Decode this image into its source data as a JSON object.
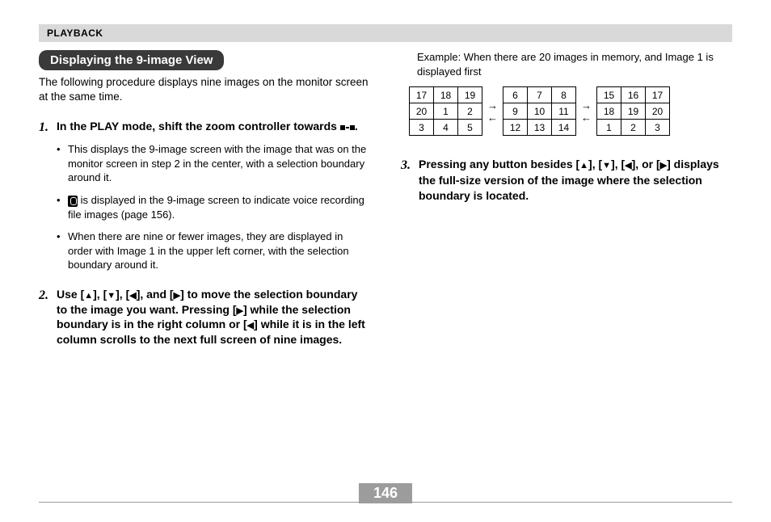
{
  "header": {
    "section": "PLAYBACK"
  },
  "section_title": "Displaying the 9-image View",
  "intro": "The following procedure displays nine images on the monitor screen at the same time.",
  "step1": {
    "text_before": "In the PLAY mode, shift the zoom controller towards ",
    "text_after": ".",
    "bullets": [
      "This displays the 9-image screen with the image that was on the monitor screen in step 2 in the center, with a selection boundary around it.",
      " is displayed in the 9-image screen to indicate voice recording file images (page 156).",
      "When there are nine or fewer images, they are displayed in order with Image 1 in the upper left corner, with the selection boundary around it."
    ]
  },
  "step2": {
    "p1": "Use [",
    "p2": "], [",
    "p3": "], [",
    "p4": "], and [",
    "p5": "] to move the selection boundary to the image you want. Pressing [",
    "p6": "] while the selection boundary is in the right column or [",
    "p7": "] while it is in the left column scrolls to the next full screen of nine images."
  },
  "example_caption": "Example: When there are 20 images in memory, and Image 1 is displayed first",
  "grids": [
    [
      [
        17,
        18,
        19
      ],
      [
        20,
        1,
        2
      ],
      [
        3,
        4,
        5
      ]
    ],
    [
      [
        6,
        7,
        8
      ],
      [
        9,
        10,
        11
      ],
      [
        12,
        13,
        14
      ]
    ],
    [
      [
        15,
        16,
        17
      ],
      [
        18,
        19,
        20
      ],
      [
        1,
        2,
        3
      ]
    ]
  ],
  "arrows": {
    "right": "→",
    "left": "←"
  },
  "step3": {
    "p1": "Pressing any button besides [",
    "p2": "], [",
    "p3": "], [",
    "p4": "], or [",
    "p5": "] displays the full-size version of the image where the selection boundary is located."
  },
  "glyphs": {
    "up": "▲",
    "down": "▼",
    "left": "◀",
    "right": "▶"
  },
  "page_number": "146",
  "colors": {
    "header_bg": "#d9d9d9",
    "title_bg": "#3a3a3a",
    "title_fg": "#ffffff",
    "text": "#000000",
    "pagebox_bg": "#9c9c9c",
    "pagebox_fg": "#ffffff",
    "rule": "#9a9a9a",
    "grid_border": "#000000"
  }
}
